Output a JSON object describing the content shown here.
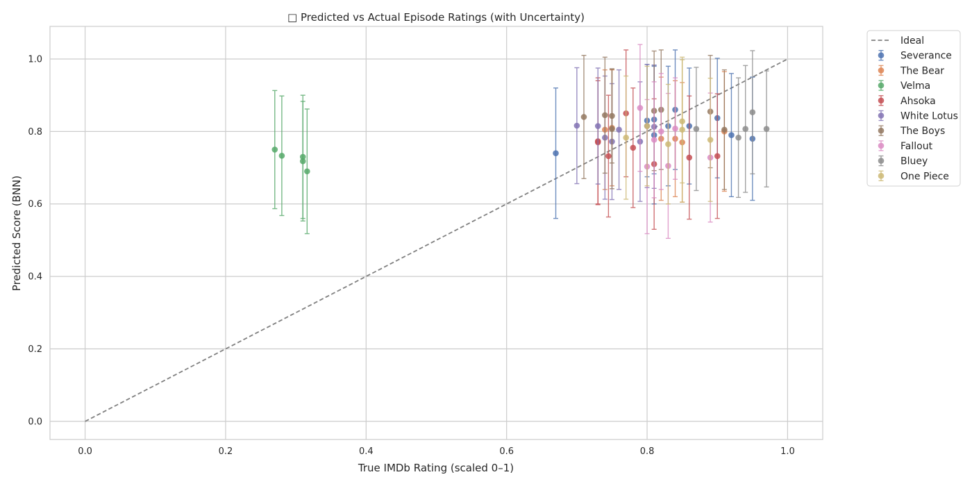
{
  "chart_data": {
    "type": "scatter",
    "title": "□ Predicted vs Actual Episode Ratings (with Uncertainty)",
    "xlabel": "True IMDb Rating (scaled 0–1)",
    "ylabel": "Predicted Score (BNN)",
    "xlim": [
      -0.05,
      1.05
    ],
    "ylim": [
      -0.05,
      1.09
    ],
    "xticks": [
      "0.0",
      "0.2",
      "0.4",
      "0.6",
      "0.8",
      "1.0"
    ],
    "yticks": [
      "0.0",
      "0.2",
      "0.4",
      "0.6",
      "0.8",
      "1.0"
    ],
    "grid": true,
    "legend_position": "outside-top-right",
    "ideal_line": {
      "name": "Ideal",
      "x": [
        0,
        1
      ],
      "y": [
        0,
        1
      ],
      "color": "#808080",
      "style": "dashed"
    },
    "series": [
      {
        "name": "Severance",
        "color": "#4c72b0",
        "points": [
          {
            "x": 0.67,
            "y": 0.74,
            "err": 0.18
          },
          {
            "x": 0.8,
            "y": 0.83,
            "err": 0.155
          },
          {
            "x": 0.81,
            "y": 0.833,
            "err": 0.15
          },
          {
            "x": 0.81,
            "y": 0.79,
            "err": 0.19
          },
          {
            "x": 0.83,
            "y": 0.815,
            "err": 0.165
          },
          {
            "x": 0.84,
            "y": 0.86,
            "err": 0.165
          },
          {
            "x": 0.86,
            "y": 0.815,
            "err": 0.16
          },
          {
            "x": 0.9,
            "y": 0.837,
            "err": 0.165
          },
          {
            "x": 0.92,
            "y": 0.79,
            "err": 0.17
          },
          {
            "x": 0.95,
            "y": 0.78,
            "err": 0.17
          }
        ]
      },
      {
        "name": "The Bear",
        "color": "#dd8452",
        "points": [
          {
            "x": 0.74,
            "y": 0.805,
            "err": 0.165
          },
          {
            "x": 0.75,
            "y": 0.81,
            "err": 0.16
          },
          {
            "x": 0.82,
            "y": 0.78,
            "err": 0.17
          },
          {
            "x": 0.84,
            "y": 0.78,
            "err": 0.16
          },
          {
            "x": 0.85,
            "y": 0.77,
            "err": 0.165
          },
          {
            "x": 0.91,
            "y": 0.8,
            "err": 0.165
          }
        ]
      },
      {
        "name": "Velma",
        "color": "#55a868",
        "points": [
          {
            "x": 0.27,
            "y": 0.75,
            "err": 0.163
          },
          {
            "x": 0.28,
            "y": 0.733,
            "err": 0.165
          },
          {
            "x": 0.31,
            "y": 0.73,
            "err": 0.17
          },
          {
            "x": 0.31,
            "y": 0.718,
            "err": 0.165
          },
          {
            "x": 0.316,
            "y": 0.69,
            "err": 0.172
          }
        ]
      },
      {
        "name": "Ahsoka",
        "color": "#c44e52",
        "points": [
          {
            "x": 0.73,
            "y": 0.773,
            "err": 0.175
          },
          {
            "x": 0.73,
            "y": 0.77,
            "err": 0.17
          },
          {
            "x": 0.745,
            "y": 0.732,
            "err": 0.168
          },
          {
            "x": 0.77,
            "y": 0.85,
            "err": 0.175
          },
          {
            "x": 0.78,
            "y": 0.755,
            "err": 0.165
          },
          {
            "x": 0.81,
            "y": 0.71,
            "err": 0.18
          },
          {
            "x": 0.86,
            "y": 0.728,
            "err": 0.17
          },
          {
            "x": 0.9,
            "y": 0.732,
            "err": 0.172
          }
        ]
      },
      {
        "name": "White Lotus",
        "color": "#8172b3",
        "points": [
          {
            "x": 0.7,
            "y": 0.816,
            "err": 0.16
          },
          {
            "x": 0.73,
            "y": 0.815,
            "err": 0.16
          },
          {
            "x": 0.74,
            "y": 0.783,
            "err": 0.17
          },
          {
            "x": 0.75,
            "y": 0.772,
            "err": 0.16
          },
          {
            "x": 0.76,
            "y": 0.805,
            "err": 0.165
          },
          {
            "x": 0.79,
            "y": 0.772,
            "err": 0.165
          },
          {
            "x": 0.8,
            "y": 0.815,
            "err": 0.17
          },
          {
            "x": 0.81,
            "y": 0.813,
            "err": 0.17
          }
        ]
      },
      {
        "name": "The Boys",
        "color": "#937860",
        "points": [
          {
            "x": 0.71,
            "y": 0.84,
            "err": 0.17
          },
          {
            "x": 0.74,
            "y": 0.845,
            "err": 0.16
          },
          {
            "x": 0.75,
            "y": 0.843,
            "err": 0.13
          },
          {
            "x": 0.75,
            "y": 0.807,
            "err": 0.165
          },
          {
            "x": 0.81,
            "y": 0.857,
            "err": 0.165
          },
          {
            "x": 0.82,
            "y": 0.86,
            "err": 0.165
          },
          {
            "x": 0.89,
            "y": 0.855,
            "err": 0.155
          },
          {
            "x": 0.91,
            "y": 0.805,
            "err": 0.165
          }
        ]
      },
      {
        "name": "Fallout",
        "color": "#da8bc3",
        "points": [
          {
            "x": 0.79,
            "y": 0.865,
            "err": 0.175
          },
          {
            "x": 0.8,
            "y": 0.703,
            "err": 0.185
          },
          {
            "x": 0.81,
            "y": 0.777,
            "err": 0.16
          },
          {
            "x": 0.82,
            "y": 0.8,
            "err": 0.16
          },
          {
            "x": 0.83,
            "y": 0.705,
            "err": 0.2
          },
          {
            "x": 0.84,
            "y": 0.808,
            "err": 0.14
          },
          {
            "x": 0.89,
            "y": 0.728,
            "err": 0.178
          }
        ]
      },
      {
        "name": "Bluey",
        "color": "#8c8c8c",
        "points": [
          {
            "x": 0.87,
            "y": 0.807,
            "err": 0.17
          },
          {
            "x": 0.93,
            "y": 0.783,
            "err": 0.165
          },
          {
            "x": 0.94,
            "y": 0.807,
            "err": 0.175
          },
          {
            "x": 0.95,
            "y": 0.853,
            "err": 0.17
          },
          {
            "x": 0.97,
            "y": 0.807,
            "err": 0.16
          }
        ]
      },
      {
        "name": "One Piece",
        "color": "#ccb974",
        "points": [
          {
            "x": 0.77,
            "y": 0.783,
            "err": 0.17
          },
          {
            "x": 0.8,
            "y": 0.815,
            "err": 0.165
          },
          {
            "x": 0.83,
            "y": 0.765,
            "err": 0.165
          },
          {
            "x": 0.85,
            "y": 0.828,
            "err": 0.17
          },
          {
            "x": 0.85,
            "y": 0.805,
            "err": 0.2
          },
          {
            "x": 0.89,
            "y": 0.777,
            "err": 0.17
          }
        ]
      }
    ]
  }
}
